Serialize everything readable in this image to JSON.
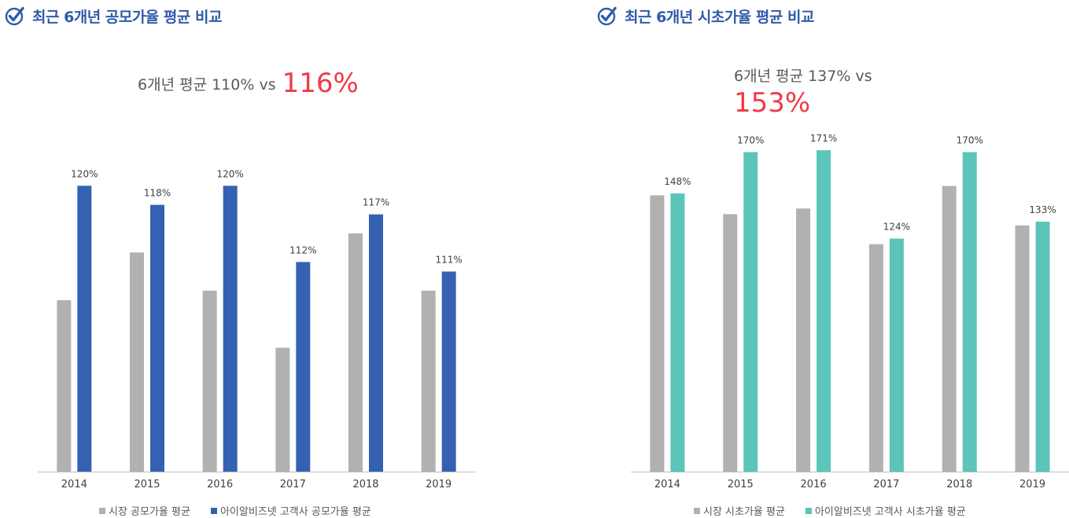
{
  "colors": {
    "heading": "#2f5ba9",
    "highlight": "#ee3c47",
    "market": "#b1b1b1",
    "company_left": "#3461b2",
    "company_right": "#5bc5b9"
  },
  "panels": [
    {
      "title": "최근 6개년 공모가율 평균 비교",
      "summary_text": "6개년 평균 110% vs",
      "summary_highlight": "116%",
      "legend": [
        "시장 공모가율 평균",
        "아이알비즈넷 고객사 공모가율 평균"
      ]
    },
    {
      "title": "최근 6개년 시초가율 평균 비교",
      "summary_text": "6개년 평균 137% vs",
      "summary_highlight": "153%",
      "legend": [
        "시장 시초가율 평균",
        "아이알비즈넷 고객사 시초가율 평균"
      ]
    }
  ],
  "chart_data": [
    {
      "type": "bar",
      "categories": [
        "2014",
        "2015",
        "2016",
        "2017",
        "2018",
        "2019"
      ],
      "series": [
        {
          "name": "시장 공모가율 평균",
          "values": [
            108,
            113,
            109,
            103,
            115,
            109
          ],
          "labels": [
            "",
            "",
            "",
            "",
            "",
            ""
          ]
        },
        {
          "name": "아이알비즈넷 고객사 공모가율 평균",
          "values": [
            120,
            118,
            120,
            112,
            117,
            111
          ],
          "labels": [
            "120%",
            "118%",
            "120%",
            "112%",
            "117%",
            "111%"
          ]
        }
      ],
      "ylim": [
        90,
        123
      ]
    },
    {
      "type": "bar",
      "categories": [
        "2014",
        "2015",
        "2016",
        "2017",
        "2018",
        "2019"
      ],
      "series": [
        {
          "name": "시장 시초가율 평균",
          "values": [
            147,
            137,
            140,
            121,
            152,
            131
          ],
          "labels": [
            "",
            "",
            "",
            "",
            "",
            ""
          ]
        },
        {
          "name": "아이알비즈넷 고객사 시초가율 평균",
          "values": [
            148,
            170,
            171,
            124,
            170,
            133
          ],
          "labels": [
            "148%",
            "170%",
            "171%",
            "124%",
            "170%",
            "133%"
          ]
        }
      ],
      "ylim": [
        0,
        179
      ]
    }
  ]
}
